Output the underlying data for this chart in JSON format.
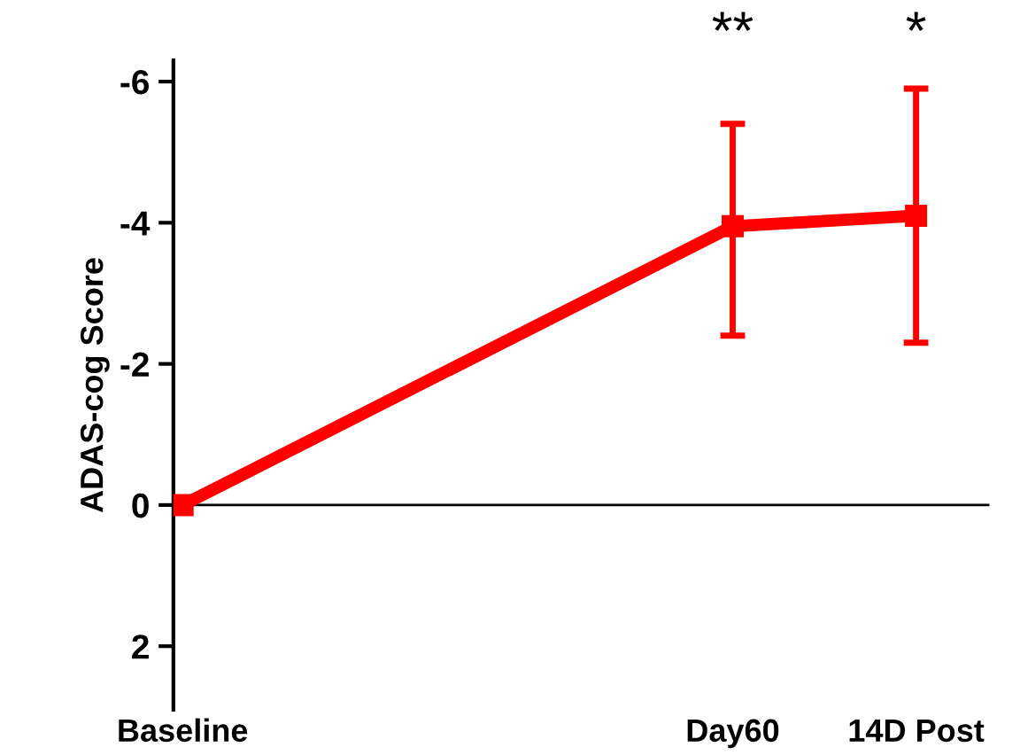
{
  "chart_data": {
    "type": "line",
    "ylabel": "ADAS-cog Score",
    "categories": [
      "Baseline",
      null,
      null,
      "Day60",
      "14D Post"
    ],
    "series": [
      {
        "color": "#ff0000",
        "values": [
          0,
          null,
          null,
          -3.95,
          -4.1
        ],
        "errors": [
          null,
          null,
          null,
          [
            -5.4,
            -2.4
          ],
          [
            -5.9,
            -2.3
          ]
        ]
      }
    ],
    "ylim": [
      2.9,
      -6.3
    ],
    "yticks": [
      -6,
      -4,
      -2,
      0,
      2
    ],
    "ref_lines": [
      {
        "axis": "y",
        "value": 0,
        "color": "#000000"
      }
    ],
    "annotations": [
      "**",
      "*"
    ],
    "marker": "square",
    "line_style": "solid",
    "grid": false,
    "legend": false
  }
}
